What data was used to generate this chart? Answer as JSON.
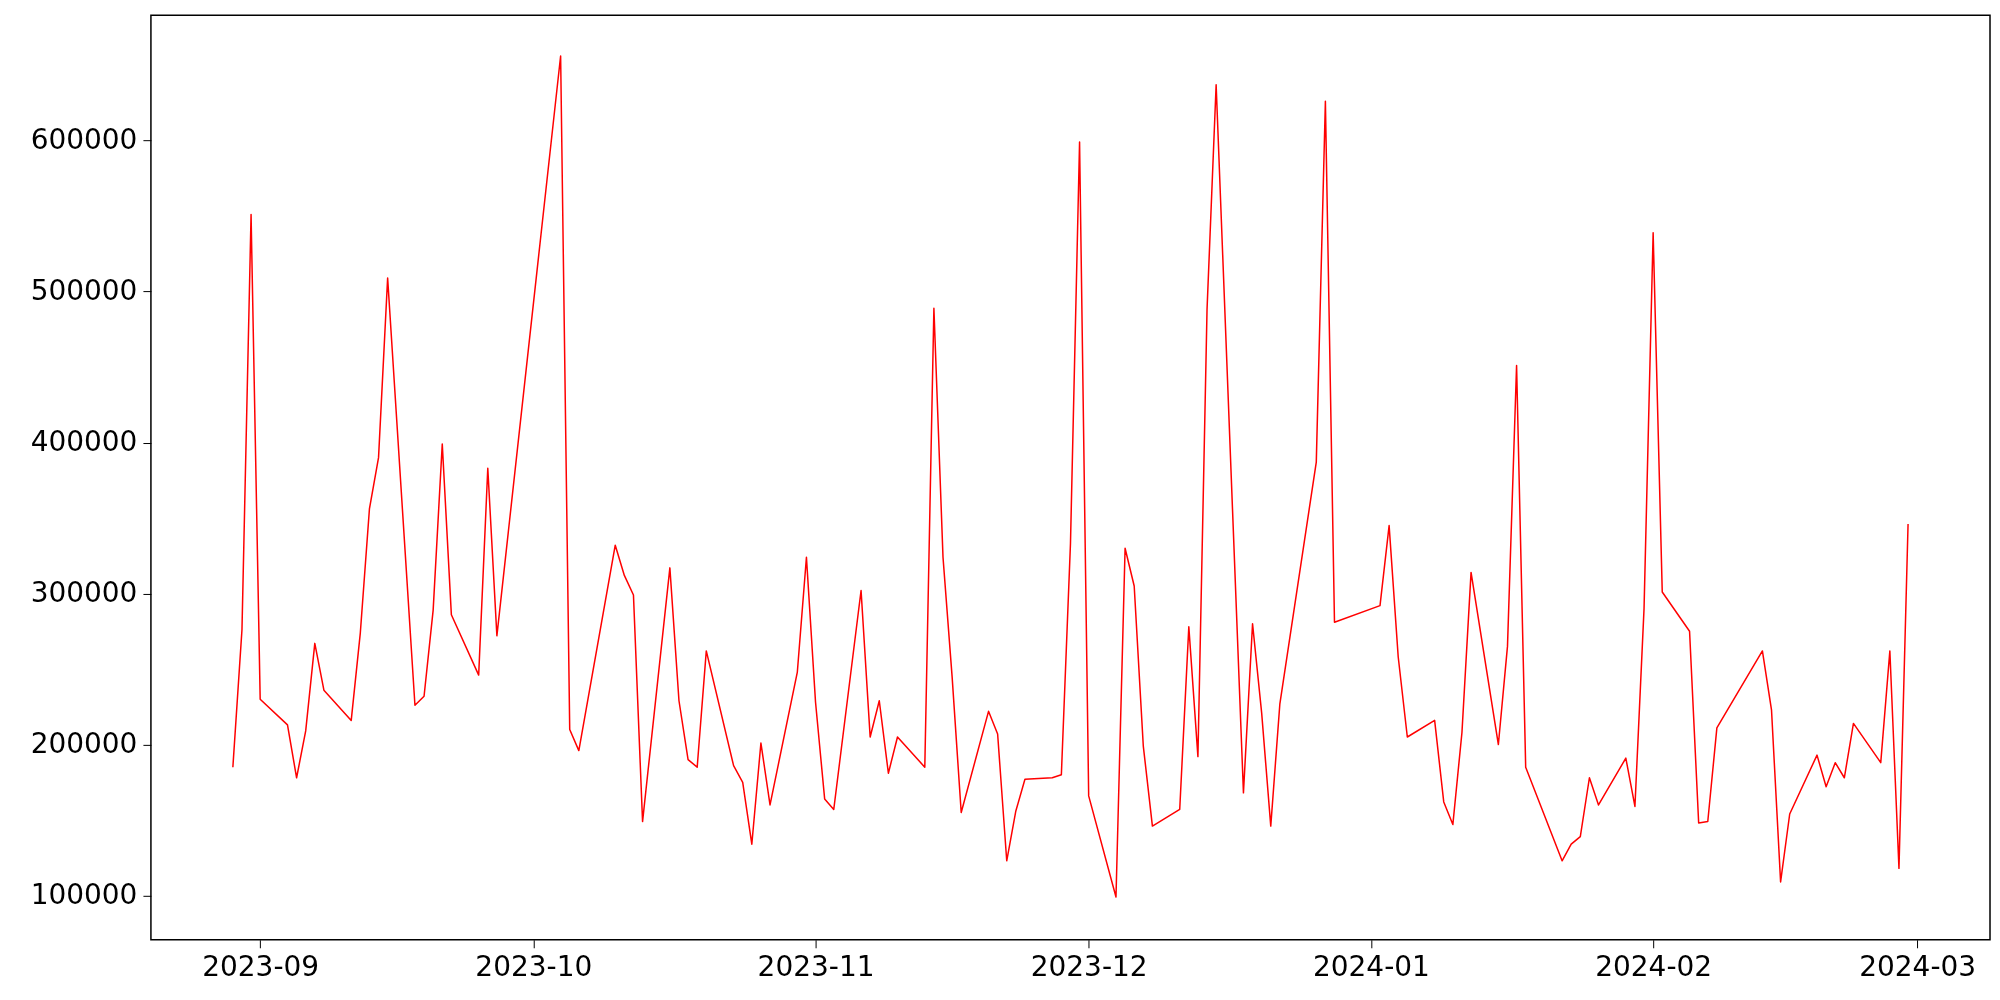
{
  "chart_data": {
    "type": "line",
    "x": [
      "2023-08-29",
      "2023-08-30",
      "2023-08-31",
      "2023-09-01",
      "2023-09-04",
      "2023-09-05",
      "2023-09-06",
      "2023-09-07",
      "2023-09-08",
      "2023-09-11",
      "2023-09-12",
      "2023-09-13",
      "2023-09-14",
      "2023-09-15",
      "2023-09-18",
      "2023-09-19",
      "2023-09-20",
      "2023-09-21",
      "2023-09-22",
      "2023-09-25",
      "2023-09-26",
      "2023-09-27",
      "2023-10-04",
      "2023-10-05",
      "2023-10-06",
      "2023-10-10",
      "2023-10-11",
      "2023-10-12",
      "2023-10-13",
      "2023-10-16",
      "2023-10-17",
      "2023-10-18",
      "2023-10-19",
      "2023-10-20",
      "2023-10-23",
      "2023-10-24",
      "2023-10-25",
      "2023-10-26",
      "2023-10-27",
      "2023-10-30",
      "2023-10-31",
      "2023-11-01",
      "2023-11-02",
      "2023-11-03",
      "2023-11-06",
      "2023-11-07",
      "2023-11-08",
      "2023-11-09",
      "2023-11-10",
      "2023-11-13",
      "2023-11-14",
      "2023-11-15",
      "2023-11-16",
      "2023-11-17",
      "2023-11-20",
      "2023-11-21",
      "2023-11-22",
      "2023-11-23",
      "2023-11-24",
      "2023-11-27",
      "2023-11-28",
      "2023-11-29",
      "2023-11-30",
      "2023-12-01",
      "2023-12-04",
      "2023-12-05",
      "2023-12-06",
      "2023-12-07",
      "2023-12-08",
      "2023-12-11",
      "2023-12-12",
      "2023-12-13",
      "2023-12-14",
      "2023-12-15",
      "2023-12-18",
      "2023-12-19",
      "2023-12-20",
      "2023-12-21",
      "2023-12-22",
      "2023-12-26",
      "2023-12-27",
      "2023-12-28",
      "2024-01-02",
      "2024-01-03",
      "2024-01-04",
      "2024-01-05",
      "2024-01-08",
      "2024-01-09",
      "2024-01-10",
      "2024-01-11",
      "2024-01-12",
      "2024-01-15",
      "2024-01-16",
      "2024-01-17",
      "2024-01-18",
      "2024-01-22",
      "2024-01-23",
      "2024-01-24",
      "2024-01-25",
      "2024-01-26",
      "2024-01-29",
      "2024-01-30",
      "2024-01-31",
      "2024-02-01",
      "2024-02-02",
      "2024-02-05",
      "2024-02-06",
      "2024-02-07",
      "2024-02-08",
      "2024-02-13",
      "2024-02-14",
      "2024-02-15",
      "2024-02-16",
      "2024-02-19",
      "2024-02-20",
      "2024-02-21",
      "2024-02-22",
      "2024-02-23",
      "2024-02-26",
      "2024-02-27",
      "2024-02-28",
      "2024-02-29"
    ],
    "series": [
      {
        "color": "#ff0000",
        "values": [
          185000,
          276000,
          551000,
          230000,
          213000,
          178000,
          209000,
          267000,
          236000,
          216000,
          274000,
          356000,
          390000,
          509000,
          226000,
          232000,
          289000,
          399000,
          286000,
          246000,
          383000,
          272000,
          656000,
          210000,
          196000,
          332000,
          312000,
          299000,
          149000,
          317000,
          229000,
          190000,
          185000,
          262000,
          186000,
          175000,
          134000,
          201000,
          160000,
          248000,
          324000,
          228000,
          164000,
          157000,
          302000,
          205000,
          229000,
          181000,
          205000,
          185000,
          489000,
          324000,
          245000,
          155000,
          222000,
          207000,
          123000,
          156000,
          177000,
          178000,
          180000,
          333000,
          599000,
          166000,
          99000,
          330000,
          305000,
          199000,
          146000,
          157000,
          278000,
          192000,
          488000,
          637000,
          168000,
          280000,
          221000,
          146000,
          227000,
          387000,
          626000,
          281000,
          292000,
          345000,
          258000,
          205000,
          216000,
          162000,
          147000,
          208000,
          314000,
          200000,
          265000,
          451000,
          185000,
          123000,
          134000,
          139000,
          178000,
          160000,
          191000,
          159000,
          290000,
          539000,
          301000,
          275000,
          148000,
          149000,
          211000,
          262000,
          223000,
          109000,
          154000,
          193000,
          172000,
          188000,
          178000,
          214000,
          188000,
          262000,
          118000,
          346000
        ]
      }
    ],
    "xlim": [
      "2023-08-20",
      "2024-03-09"
    ],
    "xticks": [
      {
        "value": "2023-09-01",
        "label": "2023-09"
      },
      {
        "value": "2023-10-01",
        "label": "2023-10"
      },
      {
        "value": "2023-11-01",
        "label": "2023-11"
      },
      {
        "value": "2023-12-01",
        "label": "2023-12"
      },
      {
        "value": "2024-01-01",
        "label": "2024-01"
      },
      {
        "value": "2024-02-01",
        "label": "2024-02"
      },
      {
        "value": "2024-03-01",
        "label": "2024-03"
      }
    ],
    "ylim": [
      70700,
      683000
    ],
    "yticks": [
      100000,
      200000,
      300000,
      400000,
      500000,
      600000
    ],
    "grid": false,
    "marker": "none",
    "line_style": "solid"
  }
}
